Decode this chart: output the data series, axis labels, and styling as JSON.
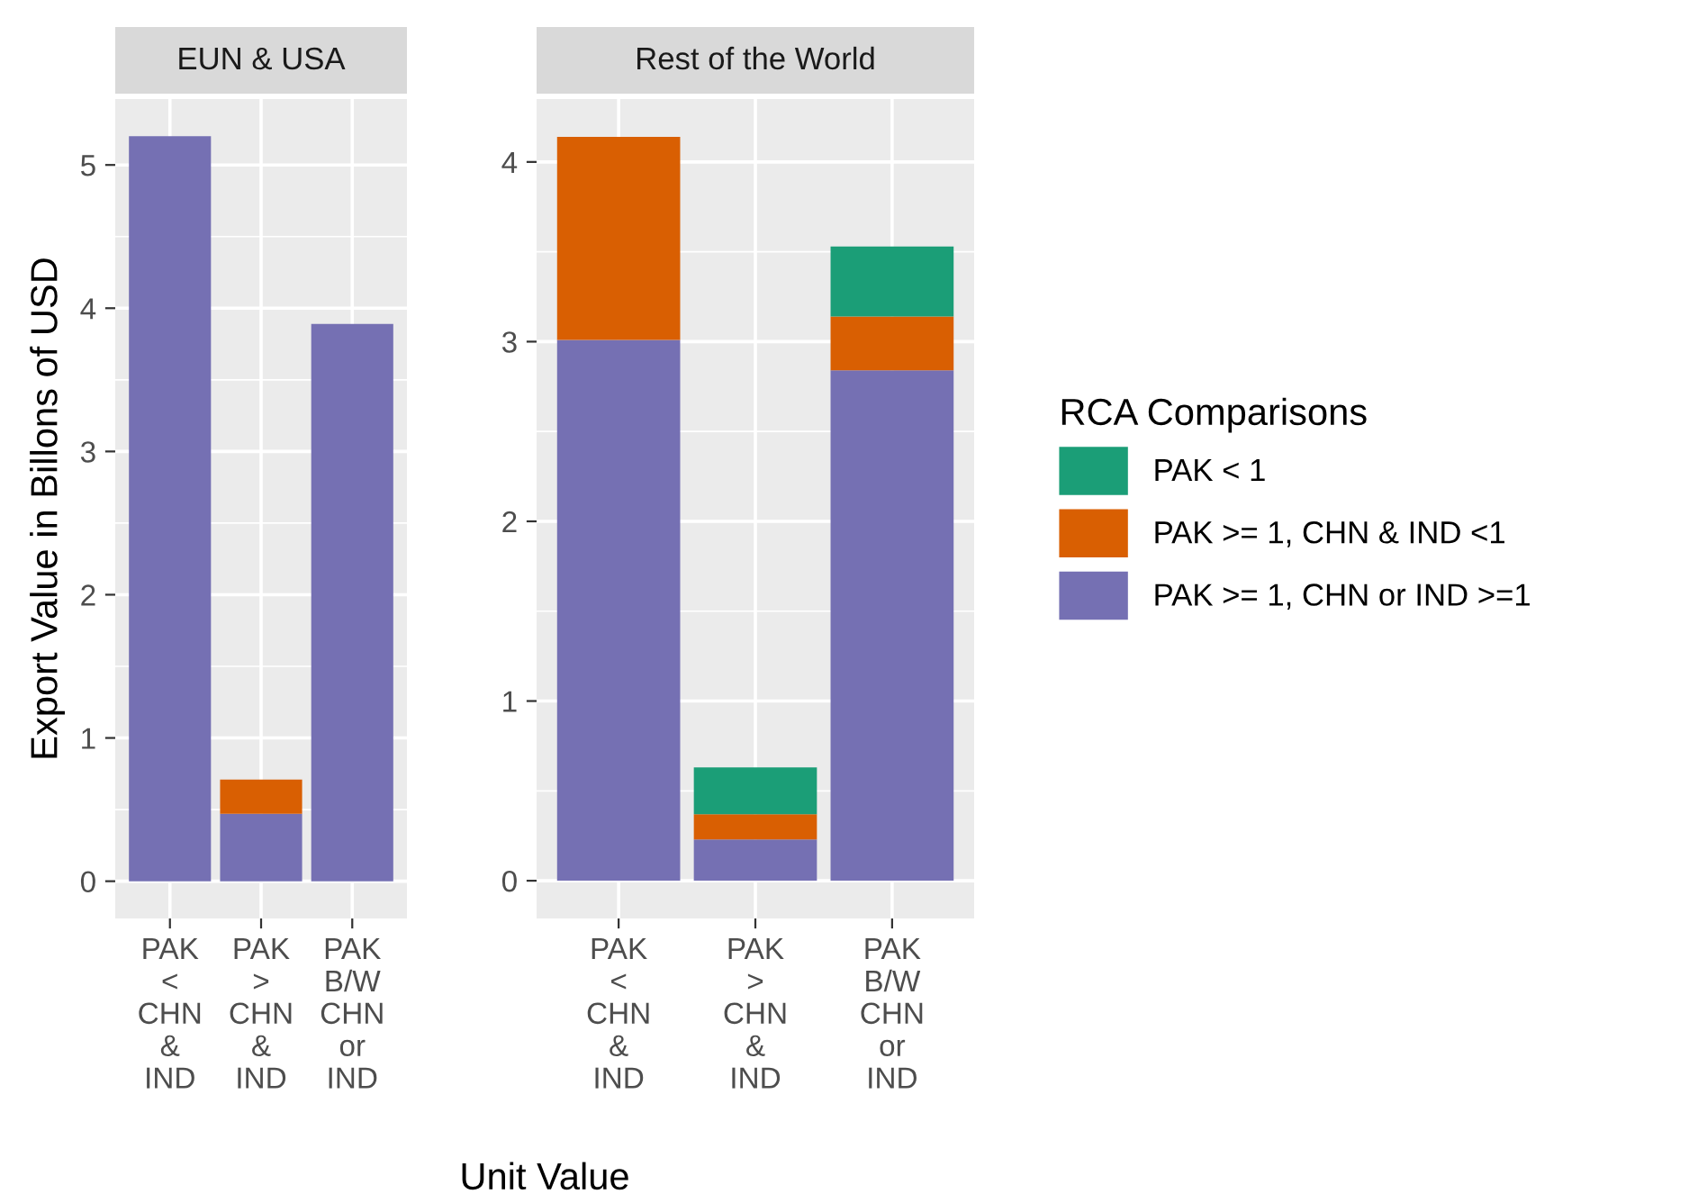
{
  "chart_data": [
    {
      "type": "bar",
      "stacked": true,
      "title": "EUN & USA",
      "ylabel": "Export Value in Billons of USD",
      "categories": [
        "PAK\n<\nCHN\n&\nIND",
        "PAK\n>\nCHN\n&\nIND",
        "PAK\nB/W\nCHN\nor\nIND"
      ],
      "ylim": [
        -0.26,
        5.46
      ],
      "yticks": [
        0,
        1,
        2,
        3,
        4,
        5
      ],
      "grid": true,
      "legend": false,
      "series": [
        {
          "color": "#7570b3",
          "values": [
            5.2,
            0.47,
            3.89
          ]
        },
        {
          "color": "#d95f02",
          "values": [
            null,
            0.24,
            null
          ]
        }
      ]
    },
    {
      "type": "bar",
      "stacked": true,
      "title": "Rest of the World",
      "xlabel": "Unit Value",
      "legend_title": "RCA Comparisons",
      "categories": [
        "PAK\n<\nCHN\n&\nIND",
        "PAK\n>\nCHN\n&\nIND",
        "PAK\nB/W\nCHN\nor\nIND"
      ],
      "ylim": [
        -0.21,
        4.35
      ],
      "yticks": [
        0,
        1,
        2,
        3,
        4
      ],
      "grid": true,
      "legend": "right",
      "series": [
        {
          "name": "PAK >= 1, CHN or IND >=1",
          "color": "#7570b3",
          "values": [
            3.01,
            0.23,
            2.84
          ]
        },
        {
          "name": "PAK >= 1, CHN & IND <1",
          "color": "#d95f02",
          "values": [
            1.13,
            0.14,
            0.3
          ]
        },
        {
          "name": "PAK < 1",
          "color": "#1b9e77",
          "values": [
            null,
            0.26,
            0.39
          ]
        }
      ]
    }
  ]
}
